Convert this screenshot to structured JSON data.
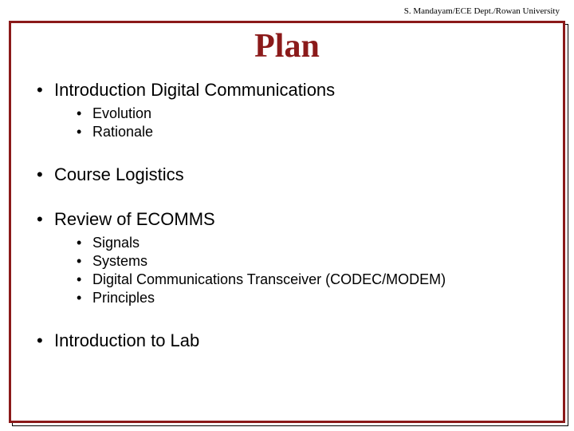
{
  "header": {
    "attribution": "S. Mandayam/ECE Dept./Rowan University"
  },
  "title": "Plan",
  "colors": {
    "accent": "#8b1a1a",
    "text": "#000000",
    "background": "#ffffff"
  },
  "typography": {
    "title_font": "Times New Roman",
    "title_size_pt": 42,
    "title_weight": "bold",
    "body_font": "Arial",
    "level1_size_pt": 22,
    "level2_size_pt": 18,
    "header_size_pt": 11
  },
  "bullets": [
    {
      "text": "Introduction Digital Communications",
      "children": [
        {
          "text": "Evolution"
        },
        {
          "text": "Rationale"
        }
      ]
    },
    {
      "text": "Course Logistics",
      "children": []
    },
    {
      "text": "Review of ECOMMS",
      "children": [
        {
          "text": "Signals"
        },
        {
          "text": "Systems"
        },
        {
          "text": "Digital Communications Transceiver (CODEC/MODEM)"
        },
        {
          "text": "Principles"
        }
      ]
    },
    {
      "text": "Introduction to Lab",
      "children": []
    }
  ]
}
